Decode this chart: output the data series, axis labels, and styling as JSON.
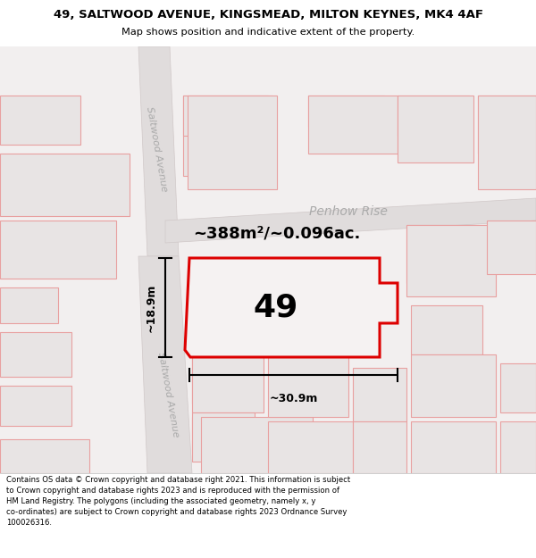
{
  "title": "49, SALTWOOD AVENUE, KINGSMEAD, MILTON KEYNES, MK4 4AF",
  "subtitle": "Map shows position and indicative extent of the property.",
  "footer": "Contains OS data © Crown copyright and database right 2021. This information is subject to Crown copyright and database rights 2023 and is reproduced with the permission of HM Land Registry. The polygons (including the associated geometry, namely x, y co-ordinates) are subject to Crown copyright and database rights 2023 Ordnance Survey 100026316.",
  "area_label": "~388m²/~0.096ac.",
  "number_label": "49",
  "width_label": "~30.9m",
  "height_label": "~18.9m",
  "street_label": "Saltwood Avenue",
  "road_label": "Penhow Rise",
  "map_bg": "#f2efef",
  "bldg_fill": "#e8e4e4",
  "bldg_edge": "#e8a0a0",
  "road_fill": "#e0dcdc",
  "road_edge": "#d0c8c8",
  "highlight_fill": "#f5f2f2",
  "highlight_edge": "#dd0000",
  "figsize": [
    6.0,
    6.25
  ],
  "dpi": 100
}
